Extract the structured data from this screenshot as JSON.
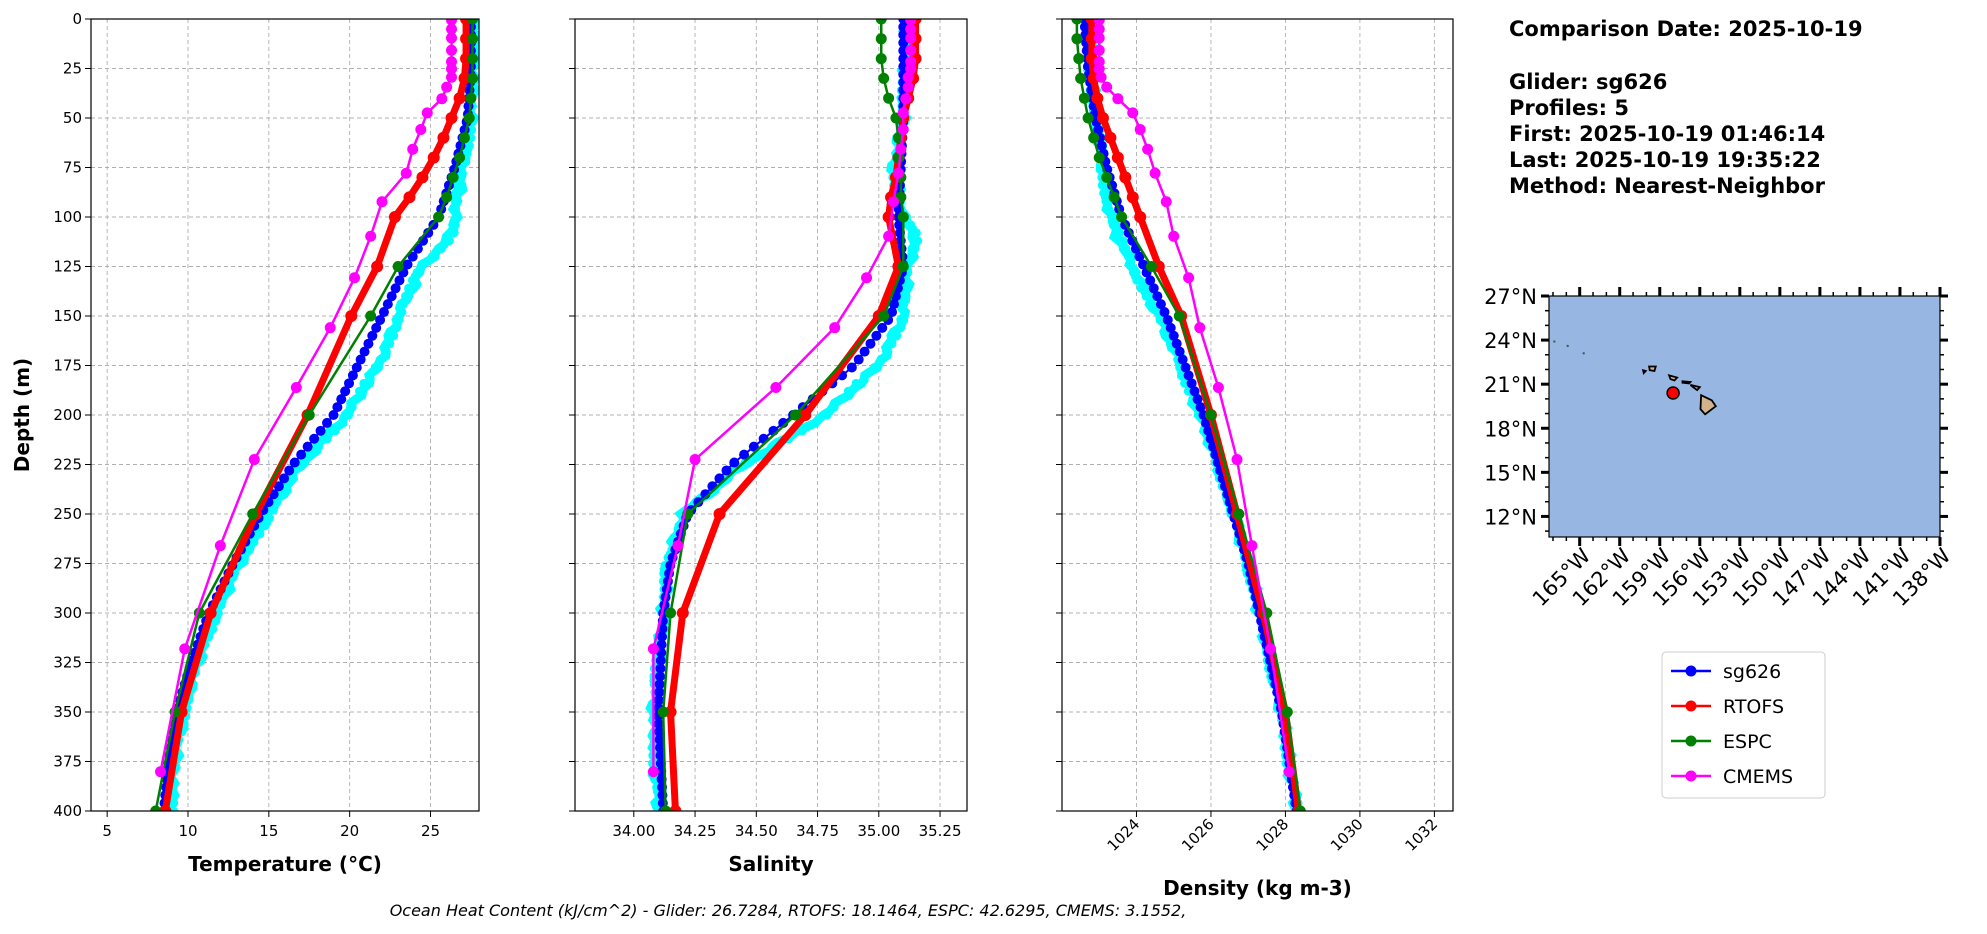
{
  "info": {
    "comparison_date": "Comparison Date: 2025-10-19",
    "glider": "Glider: sg626",
    "profiles": "Profiles: 5",
    "first": "First: 2025-10-19 01:46:14",
    "last": "Last: 2025-10-19 19:35:22",
    "method": "Method: Nearest-Neighbor"
  },
  "caption": "Ocean Heat Content (kJ/cm^2) - Glider: 26.7284,  RTOFS: 18.1464,  ESPC: 42.6295,  CMEMS: 3.1552,",
  "chart_data": {
    "type": "line",
    "ylabel": "Depth (m)",
    "ylim": [
      400,
      0
    ],
    "yticks": [
      "0",
      "25",
      "50",
      "75",
      "100",
      "125",
      "150",
      "175",
      "200",
      "225",
      "250",
      "275",
      "300",
      "325",
      "350",
      "375",
      "400"
    ],
    "grid": true,
    "legend_placement": "right",
    "panels": [
      {
        "key": "temp",
        "xlabel": "Temperature (°C)",
        "xlim": [
          4,
          28
        ],
        "xticks": [
          "5",
          "10",
          "15",
          "20",
          "25"
        ],
        "xtick_values": [
          5,
          10,
          15,
          20,
          25
        ],
        "rotate_ticks": false
      },
      {
        "key": "sal",
        "xlabel": "Salinity",
        "xlim": [
          33.76,
          35.36
        ],
        "xticks": [
          "34.00",
          "34.25",
          "34.50",
          "34.75",
          "35.00",
          "35.25"
        ],
        "xtick_values": [
          34.0,
          34.25,
          34.5,
          34.75,
          35.0,
          35.25
        ],
        "rotate_ticks": false
      },
      {
        "key": "dens",
        "xlabel": "Density (kg m-3)",
        "xlim": [
          1022.0,
          1032.5
        ],
        "xticks": [
          "1024",
          "1026",
          "1028",
          "1030",
          "1032"
        ],
        "xtick_values": [
          1024,
          1026,
          1028,
          1030,
          1032
        ],
        "rotate_ticks": true
      }
    ],
    "envelope": {
      "color": "#00ffff",
      "depth": [
        0,
        25,
        50,
        75,
        100,
        110,
        125,
        150,
        175,
        200,
        225,
        250,
        275,
        300,
        325,
        350,
        375,
        400
      ],
      "temp": [
        27.6,
        27.7,
        27.5,
        27.0,
        26.5,
        26.2,
        24.5,
        23.0,
        21.8,
        19.8,
        17.0,
        15.0,
        13.2,
        11.7,
        10.6,
        9.7,
        9.2,
        8.9
      ],
      "sal": [
        35.11,
        35.11,
        35.1,
        35.06,
        35.1,
        35.15,
        35.12,
        35.1,
        35.0,
        34.78,
        34.45,
        34.2,
        34.14,
        34.12,
        34.1,
        34.08,
        34.09,
        34.1
      ],
      "dens": [
        1022.7,
        1022.8,
        1022.9,
        1023.1,
        1023.3,
        1023.5,
        1023.9,
        1024.6,
        1025.2,
        1025.7,
        1026.2,
        1026.6,
        1027.0,
        1027.3,
        1027.6,
        1027.9,
        1028.1,
        1028.3
      ]
    },
    "series": [
      {
        "name": "sg626",
        "color": "#0000ff",
        "style": "dense",
        "depth": [
          0,
          25,
          50,
          75,
          100,
          125,
          150,
          175,
          200,
          225,
          250,
          275,
          300,
          325,
          350,
          375,
          400
        ],
        "temp": [
          27.5,
          27.5,
          27.3,
          26.5,
          25.5,
          23.5,
          22.0,
          20.5,
          19.0,
          16.5,
          14.5,
          12.8,
          11.3,
          10.2,
          9.3,
          8.8,
          8.5
        ],
        "sal": [
          35.1,
          35.1,
          35.1,
          35.09,
          35.08,
          35.1,
          35.05,
          34.9,
          34.65,
          34.4,
          34.22,
          34.15,
          34.12,
          34.11,
          34.1,
          34.11,
          34.12
        ],
        "dens": [
          1022.6,
          1022.7,
          1022.9,
          1023.2,
          1023.6,
          1024.2,
          1024.8,
          1025.3,
          1025.8,
          1026.2,
          1026.6,
          1027.0,
          1027.3,
          1027.6,
          1027.9,
          1028.1,
          1028.3
        ]
      },
      {
        "name": "RTOFS",
        "color": "#ff0000",
        "style": "thick",
        "depth": [
          0,
          10,
          20,
          30,
          40,
          50,
          60,
          70,
          80,
          90,
          100,
          125,
          150,
          200,
          250,
          300,
          350,
          400
        ],
        "temp": [
          27.2,
          27.2,
          27.2,
          27.1,
          26.8,
          26.3,
          25.8,
          25.2,
          24.5,
          23.7,
          22.8,
          21.7,
          20.1,
          17.4,
          14.2,
          11.4,
          9.6,
          8.6
        ],
        "sal": [
          35.15,
          35.15,
          35.15,
          35.14,
          35.12,
          35.1,
          35.09,
          35.08,
          35.07,
          35.05,
          35.04,
          35.08,
          35.0,
          34.7,
          34.35,
          34.2,
          34.15,
          34.17
        ],
        "dens": [
          1022.8,
          1022.8,
          1022.8,
          1022.85,
          1022.95,
          1023.1,
          1023.3,
          1023.5,
          1023.7,
          1023.9,
          1024.1,
          1024.6,
          1025.2,
          1026.0,
          1026.7,
          1027.4,
          1028.0,
          1028.35
        ]
      },
      {
        "name": "ESPC",
        "color": "#008000",
        "style": "normal",
        "depth": [
          0,
          10,
          20,
          30,
          40,
          50,
          60,
          70,
          80,
          90,
          100,
          125,
          150,
          200,
          250,
          300,
          350,
          400
        ],
        "temp": [
          27.6,
          27.6,
          27.6,
          27.6,
          27.5,
          27.4,
          27.1,
          26.8,
          26.4,
          26.0,
          25.5,
          23.0,
          21.3,
          17.5,
          14.0,
          10.7,
          9.2,
          8.0
        ],
        "sal": [
          35.01,
          35.01,
          35.01,
          35.02,
          35.04,
          35.07,
          35.08,
          35.08,
          35.09,
          35.09,
          35.1,
          35.1,
          35.02,
          34.66,
          34.22,
          34.15,
          34.12,
          34.13
        ],
        "dens": [
          1022.4,
          1022.4,
          1022.45,
          1022.5,
          1022.6,
          1022.7,
          1022.85,
          1023.0,
          1023.2,
          1023.4,
          1023.6,
          1024.4,
          1025.15,
          1026.0,
          1026.75,
          1027.5,
          1028.05,
          1028.4
        ]
      },
      {
        "name": "CMEMS",
        "color": "#ff00ff",
        "style": "normal",
        "depth": [
          0.5,
          5.1,
          9.6,
          15.8,
          21.6,
          25.2,
          29.4,
          34.4,
          40.3,
          47.4,
          55.8,
          65.8,
          77.9,
          92.3,
          109.7,
          130.7,
          155.9,
          186.1,
          222.5,
          266.0,
          318.1,
          380.2
        ],
        "temp": [
          26.3,
          26.3,
          26.3,
          26.3,
          26.3,
          26.3,
          26.3,
          26.0,
          25.7,
          24.8,
          24.4,
          23.9,
          23.5,
          22.0,
          21.3,
          20.3,
          18.8,
          16.7,
          14.1,
          12.0,
          9.8,
          8.3
        ],
        "sal": [
          35.13,
          35.13,
          35.13,
          35.13,
          35.13,
          35.13,
          35.12,
          35.12,
          35.11,
          35.1,
          35.1,
          35.09,
          35.08,
          35.06,
          35.04,
          34.95,
          34.82,
          34.58,
          34.25,
          34.18,
          34.08,
          34.08
        ],
        "dens": [
          1023.0,
          1023.0,
          1023.0,
          1023.0,
          1023.0,
          1023.0,
          1023.05,
          1023.2,
          1023.5,
          1023.9,
          1024.1,
          1024.3,
          1024.5,
          1024.8,
          1025.0,
          1025.4,
          1025.7,
          1026.2,
          1026.7,
          1027.1,
          1027.6,
          1028.1
        ]
      }
    ]
  },
  "map": {
    "ocean_color": "#97b6e1",
    "land_color": "#d2b48c",
    "lat_ticks": [
      "12°N",
      "15°N",
      "18°N",
      "21°N",
      "24°N",
      "27°N"
    ],
    "lat_values": [
      12,
      15,
      18,
      21,
      24,
      27
    ],
    "lon_ticks": [
      "165°W",
      "162°W",
      "159°W",
      "156°W",
      "153°W",
      "150°W",
      "147°W",
      "144°W",
      "141°W",
      "138°W"
    ],
    "lon_values": [
      -165,
      -162,
      -159,
      -156,
      -153,
      -150,
      -147,
      -144,
      -141,
      -138
    ],
    "lon_range": [
      -167.3,
      -138
    ],
    "lat_range": [
      10.6,
      27
    ],
    "glider_location": {
      "lon": -158.0,
      "lat": 20.4,
      "color": "#ff0000"
    }
  }
}
